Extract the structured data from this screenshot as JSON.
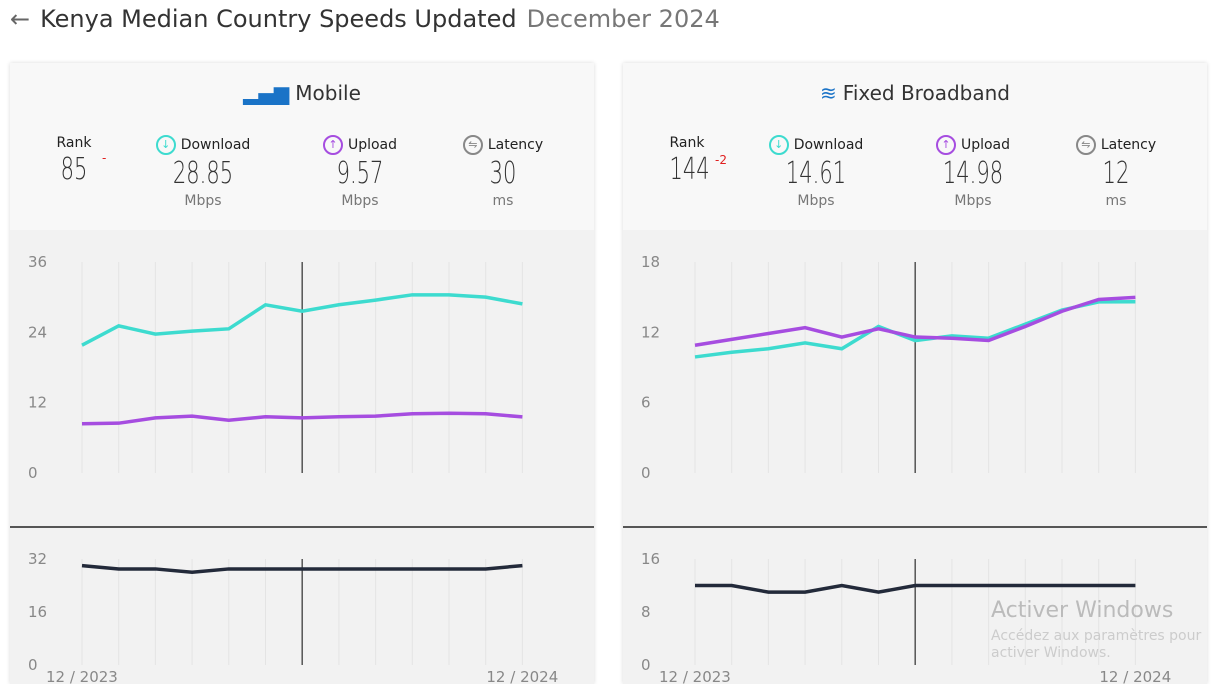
{
  "header": {
    "title": "Kenya Median Country Speeds Updated",
    "date": "December 2024"
  },
  "stat_labels": {
    "rank": "Rank",
    "download": "Download",
    "upload": "Upload",
    "latency": "Latency",
    "mbps": "Mbps",
    "ms": "ms"
  },
  "colors": {
    "download": "#3ddbcf",
    "upload": "#a64de0",
    "latency": "#232a3a",
    "accent": "#1a73c7"
  },
  "panels": [
    {
      "title": "Mobile",
      "icon": "signal-bars-icon",
      "rank": "85",
      "rank_change": "-",
      "download": "28.85",
      "upload": "9.57",
      "latency": "30"
    },
    {
      "title": "Fixed Broadband",
      "icon": "wifi-icon",
      "rank": "144",
      "rank_change": "-2",
      "download": "14.61",
      "upload": "14.98",
      "latency": "12"
    }
  ],
  "chart_data": [
    {
      "type": "line",
      "title": "Mobile speeds",
      "x_labels": [
        "12 / 2023",
        "12 / 2024"
      ],
      "x": [
        "12/2023",
        "01/2024",
        "02/2024",
        "03/2024",
        "04/2024",
        "05/2024",
        "06/2024",
        "07/2024",
        "08/2024",
        "09/2024",
        "10/2024",
        "11/2024",
        "12/2024"
      ],
      "ylim": [
        0,
        36
      ],
      "yticks": [
        0,
        12,
        24,
        36
      ],
      "series": [
        {
          "key": "download",
          "values": [
            21.8,
            25.1,
            23.7,
            24.2,
            24.6,
            28.7,
            27.6,
            28.7,
            29.5,
            30.4,
            30.4,
            30.0,
            28.85
          ]
        },
        {
          "key": "upload",
          "values": [
            8.4,
            8.5,
            9.4,
            9.7,
            9.0,
            9.6,
            9.4,
            9.6,
            9.7,
            10.1,
            10.2,
            10.1,
            9.57
          ]
        }
      ],
      "latency": {
        "ylim": [
          0,
          32
        ],
        "yticks": [
          0,
          16,
          32
        ],
        "values": [
          30,
          29,
          29,
          28,
          29,
          29,
          29,
          29,
          29,
          29,
          29,
          29,
          30
        ]
      },
      "marker_index": 6
    },
    {
      "type": "line",
      "title": "Fixed Broadband speeds",
      "x_labels": [
        "12 / 2023",
        "12 / 2024"
      ],
      "x": [
        "12/2023",
        "01/2024",
        "02/2024",
        "03/2024",
        "04/2024",
        "05/2024",
        "06/2024",
        "07/2024",
        "08/2024",
        "09/2024",
        "10/2024",
        "11/2024",
        "12/2024"
      ],
      "ylim": [
        0,
        18
      ],
      "yticks": [
        0,
        6,
        12,
        18
      ],
      "series": [
        {
          "key": "download",
          "values": [
            9.9,
            10.3,
            10.6,
            11.1,
            10.6,
            12.5,
            11.3,
            11.7,
            11.5,
            12.7,
            13.9,
            14.6,
            14.61
          ]
        },
        {
          "key": "upload",
          "values": [
            10.9,
            11.4,
            11.9,
            12.4,
            11.6,
            12.3,
            11.6,
            11.5,
            11.3,
            12.5,
            13.8,
            14.8,
            14.98
          ]
        }
      ],
      "latency": {
        "ylim": [
          0,
          16
        ],
        "yticks": [
          0,
          8,
          16
        ],
        "values": [
          12,
          12,
          11,
          11,
          12,
          11,
          12,
          12,
          12,
          12,
          12,
          12,
          12
        ]
      },
      "marker_index": 6
    }
  ],
  "watermark": {
    "title": "Activer Windows",
    "sub": "Accédez aux paramètres pour activer Windows."
  }
}
